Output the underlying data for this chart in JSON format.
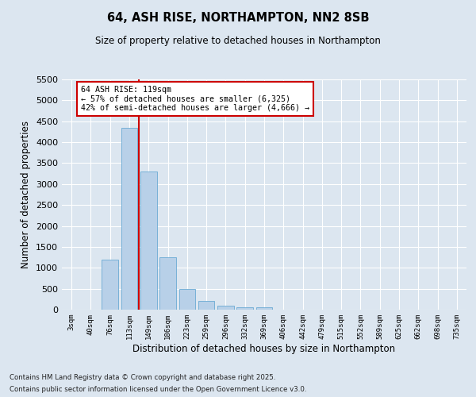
{
  "title": "64, ASH RISE, NORTHAMPTON, NN2 8SB",
  "subtitle": "Size of property relative to detached houses in Northampton",
  "xlabel": "Distribution of detached houses by size in Northampton",
  "ylabel": "Number of detached properties",
  "categories": [
    "3sqm",
    "40sqm",
    "76sqm",
    "113sqm",
    "149sqm",
    "186sqm",
    "223sqm",
    "259sqm",
    "296sqm",
    "332sqm",
    "369sqm",
    "406sqm",
    "442sqm",
    "479sqm",
    "515sqm",
    "552sqm",
    "589sqm",
    "625sqm",
    "662sqm",
    "698sqm",
    "735sqm"
  ],
  "values": [
    0,
    0,
    1200,
    4350,
    3300,
    1250,
    500,
    200,
    100,
    55,
    50,
    0,
    0,
    0,
    0,
    0,
    0,
    0,
    0,
    0,
    0
  ],
  "bar_color": "#b8d0e8",
  "bar_edge_color": "#6aaad4",
  "vline_x": 3.5,
  "vline_color": "#cc0000",
  "ylim": [
    0,
    5500
  ],
  "yticks": [
    0,
    500,
    1000,
    1500,
    2000,
    2500,
    3000,
    3500,
    4000,
    4500,
    5000,
    5500
  ],
  "annotation_text": "64 ASH RISE: 119sqm\n← 57% of detached houses are smaller (6,325)\n42% of semi-detached houses are larger (4,666) →",
  "annotation_box_color": "#ffffff",
  "annotation_box_edge_color": "#cc0000",
  "footnote1": "Contains HM Land Registry data © Crown copyright and database right 2025.",
  "footnote2": "Contains public sector information licensed under the Open Government Licence v3.0.",
  "background_color": "#dce6f0",
  "plot_bg_color": "#dce6f0"
}
